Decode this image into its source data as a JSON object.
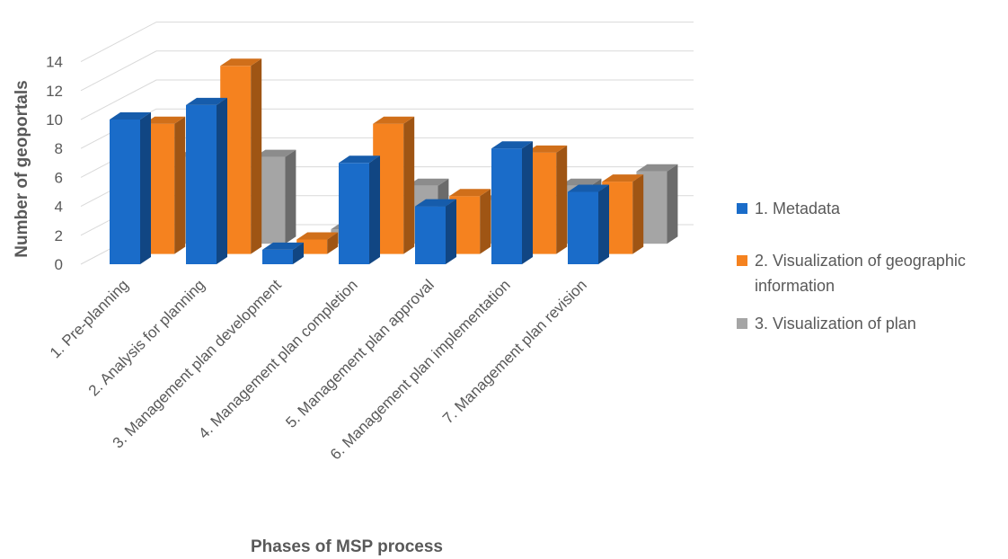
{
  "chart_data": {
    "type": "bar",
    "subtype": "3d-clustered-column",
    "title": "",
    "xlabel": "Phases of MSP process",
    "ylabel": "Number of geoportals",
    "ylim": [
      0,
      14
    ],
    "yticks": [
      0,
      2,
      4,
      6,
      8,
      10,
      12,
      14
    ],
    "grid": true,
    "legend_position": "right",
    "categories": [
      "1. Pre-planning",
      "2. Analysis for planning",
      "3. Management plan development",
      "4. Management plan completion",
      "5. Management plan approval",
      "6. Management plan implementation",
      "7. Management plan revision"
    ],
    "series": [
      {
        "name": "1. Metadata",
        "color": "#1a6cc9",
        "values": [
          10,
          11,
          1,
          7,
          4,
          8,
          5
        ]
      },
      {
        "name": "2. Visualization of geographic information",
        "color": "#f5821f",
        "values": [
          9,
          13,
          1,
          9,
          4,
          7,
          5
        ]
      },
      {
        "name": "3. Visualization of plan",
        "color": "#a5a5a5",
        "values": [
          6,
          6,
          1,
          4,
          3,
          4,
          5
        ]
      }
    ]
  }
}
